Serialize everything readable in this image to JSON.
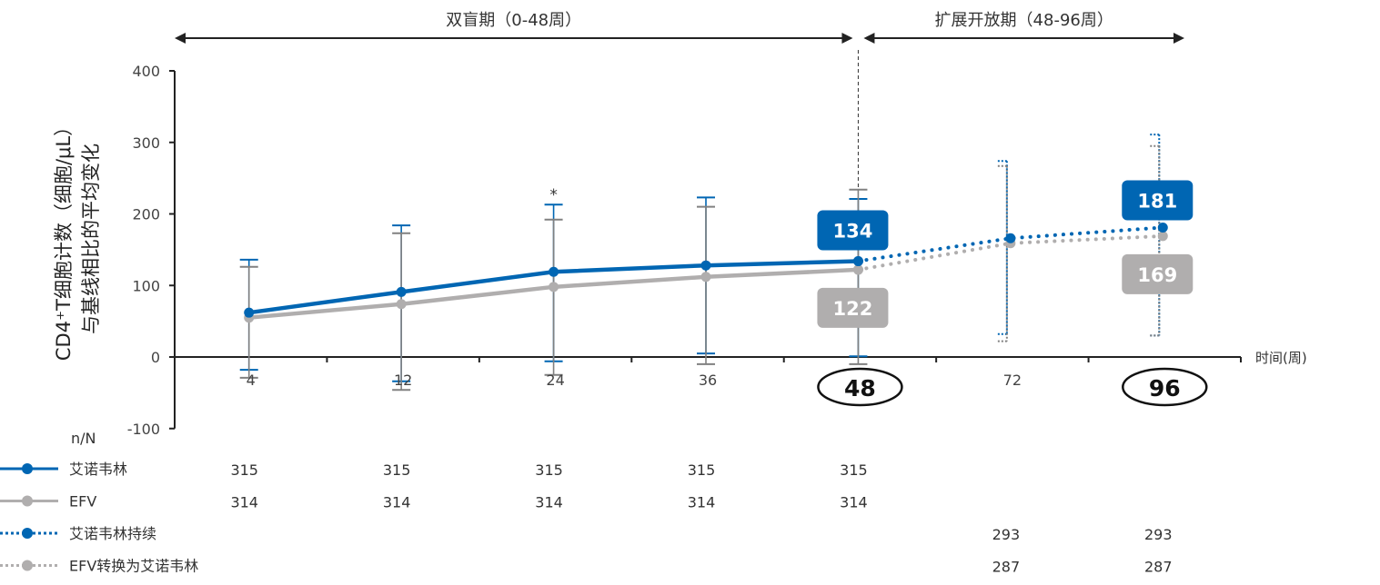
{
  "chart_data": {
    "type": "line",
    "ylabel_line1": "CD4⁺T细胞计数（细胞/μL）",
    "ylabel_line2": "与基线相比的平均变化",
    "xlabel": "时间(周)",
    "ylim": [
      -100,
      400
    ],
    "yticks": [
      -100,
      0,
      100,
      200,
      300,
      400
    ],
    "categories": [
      "4",
      "12",
      "24",
      "36",
      "48",
      "72",
      "96"
    ],
    "highlighted_categories": [
      "48",
      "96"
    ],
    "periods": [
      {
        "label": "双盲期（0-48周）",
        "from": "0",
        "to": "48"
      },
      {
        "label": "扩展开放期（48-96周）",
        "from": "48",
        "to": "96"
      }
    ],
    "annotation": {
      "text": "*",
      "at": "24"
    },
    "colors": {
      "blue": "#0066b3",
      "gray": "#b0aeae",
      "errgray": "#808080"
    },
    "grid": false,
    "series": [
      {
        "name": "艾诺韦林",
        "style": "solid",
        "color": "#0066b3",
        "x": [
          "4",
          "12",
          "24",
          "36",
          "48"
        ],
        "values": [
          62,
          91,
          119,
          128,
          134
        ],
        "err_high": [
          136,
          184,
          213,
          223,
          221
        ],
        "err_low": [
          -18,
          -34,
          -6,
          5,
          1
        ],
        "n": [
          "315",
          "315",
          "315",
          "315",
          "315"
        ]
      },
      {
        "name": "EFV",
        "style": "solid",
        "color": "#b0aeae",
        "x": [
          "4",
          "12",
          "24",
          "36",
          "48"
        ],
        "values": [
          55,
          74,
          98,
          112,
          122
        ],
        "err_high": [
          126,
          173,
          192,
          210,
          234
        ],
        "err_low": [
          -29,
          -46,
          -25,
          -10,
          -10
        ],
        "n": [
          "314",
          "314",
          "314",
          "314",
          "314"
        ]
      },
      {
        "name": "艾诺韦林持续",
        "style": "dotted",
        "color": "#0066b3",
        "x": [
          "48",
          "72",
          "96"
        ],
        "values": [
          134,
          166,
          181
        ],
        "err_high": [
          null,
          274,
          311
        ],
        "err_low": [
          null,
          32,
          30
        ],
        "n": [
          null,
          "293",
          "293"
        ]
      },
      {
        "name": "EFV转换为艾诺韦林",
        "style": "dotted",
        "color": "#b0aeae",
        "x": [
          "48",
          "72",
          "96"
        ],
        "values": [
          122,
          159,
          169
        ],
        "err_high": [
          null,
          267,
          295
        ],
        "err_low": [
          null,
          22,
          30
        ],
        "n": [
          null,
          "287",
          "287"
        ]
      }
    ],
    "data_labels": [
      {
        "series": "艾诺韦林",
        "at": "48",
        "text": "134"
      },
      {
        "series": "EFV",
        "at": "48",
        "text": "122"
      },
      {
        "series": "艾诺韦林持续",
        "at": "96",
        "text": "181"
      },
      {
        "series": "EFV转换为艾诺韦林",
        "at": "96",
        "text": "169"
      }
    ],
    "n_label": "n/N"
  }
}
